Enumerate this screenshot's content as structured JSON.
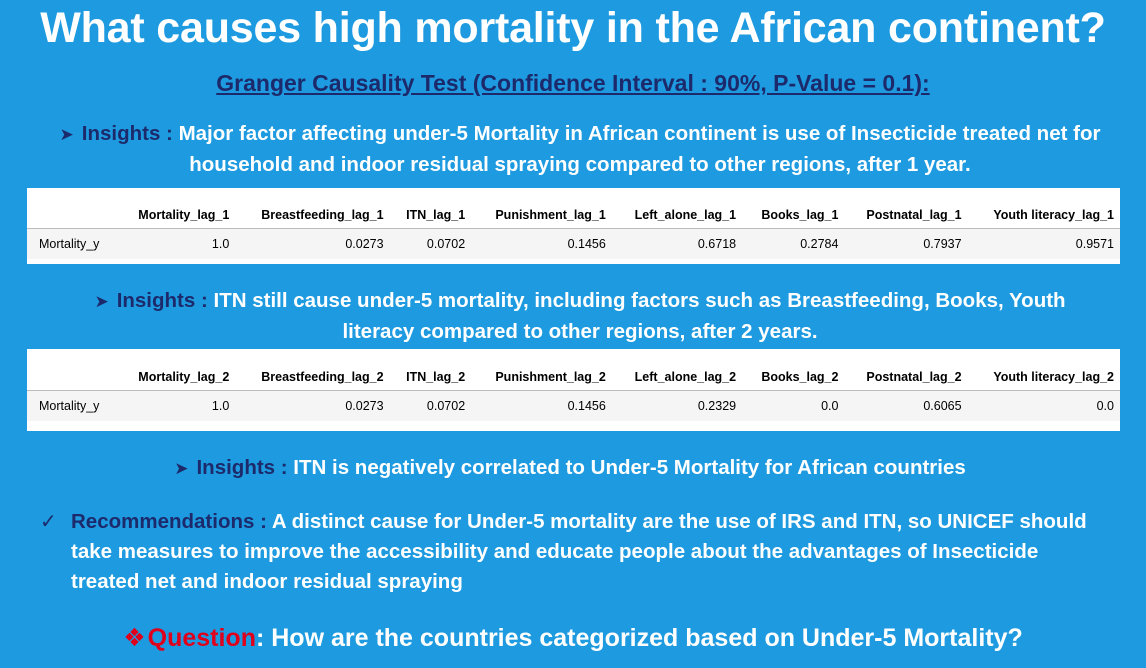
{
  "title": "What causes high mortality in the African continent?",
  "subtitle": "Granger Causality Test (Confidence Interval : 90%, P-Value = 0.1):",
  "insight1": {
    "lead": "Insights :",
    "text": "Major factor affecting under-5 Mortality in African continent is use of Insecticide treated net for household and indoor residual spraying compared to other regions, after 1 year."
  },
  "table1": {
    "columns": [
      "Mortality_lag_1",
      "Breastfeeding_lag_1",
      "ITN_lag_1",
      "Punishment_lag_1",
      "Left_alone_lag_1",
      "Books_lag_1",
      "Postnatal_lag_1",
      "Youth literacy_lag_1"
    ],
    "row_label": "Mortality_y",
    "values": [
      "1.0",
      "0.0273",
      "0.0702",
      "0.1456",
      "0.6718",
      "0.2784",
      "0.7937",
      "0.9571"
    ]
  },
  "insight2": {
    "lead": "Insights :",
    "text": "ITN still cause under-5 mortality, including factors such as Breastfeeding, Books, Youth literacy compared to other regions, after 2 years."
  },
  "table2": {
    "columns": [
      "Mortality_lag_2",
      "Breastfeeding_lag_2",
      "ITN_lag_2",
      "Punishment_lag_2",
      "Left_alone_lag_2",
      "Books_lag_2",
      "Postnatal_lag_2",
      "Youth literacy_lag_2"
    ],
    "row_label": "Mortality_y",
    "values": [
      "1.0",
      "0.0273",
      "0.0702",
      "0.1456",
      "0.2329",
      "0.0",
      "0.6065",
      "0.0"
    ]
  },
  "insight3": {
    "lead": "Insights :",
    "text": "ITN is negatively correlated to Under-5 Mortality for African countries"
  },
  "recommendation": {
    "lead": "Recommendations :",
    "text": "A distinct cause for Under-5 mortality are the use of IRS and ITN, so UNICEF should take measures to improve the accessibility and educate people about the advantages of Insecticide treated net and indoor residual spraying"
  },
  "question": {
    "word": "Question",
    "text": ": How are the countries categorized based on Under-5 Mortality?"
  },
  "colors": {
    "background": "#1E9BE0",
    "dark_blue": "#1C2A6B",
    "red": "#E0001B"
  }
}
